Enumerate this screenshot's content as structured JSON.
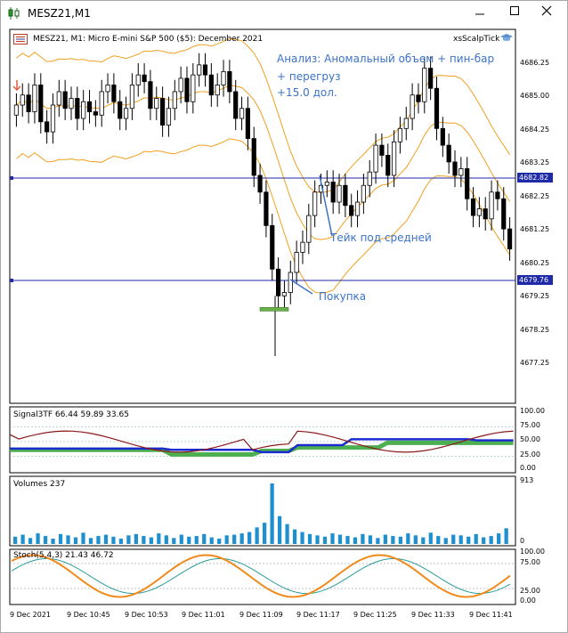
{
  "window": {
    "title": "MESZ21,M1",
    "controls": [
      "minimize",
      "maximize",
      "close"
    ]
  },
  "chart": {
    "info": "MESZ21, M1:  Micro E-mini S&P 500 ($5): December 2021",
    "ea_name": "xsScalpTick",
    "analysis_lines": [
      "Анализ: Аномальный объем + пин-бар",
      "+ перегруз",
      "+15.0 дол."
    ],
    "take_label": "Тейк под средней",
    "buy_label": "Покупка",
    "price_ticks": [
      "4686.25",
      "4685.00",
      "4684.25",
      "4683.25",
      "4682.25",
      "4681.25",
      "4680.25",
      "4679.25",
      "4678.25",
      "4677.25"
    ],
    "hline_upper": "4682.82",
    "hline_lower": "4679.76",
    "colors": {
      "hline": "#1f2aa8",
      "bands": "#f0a020",
      "annotation": "#3b73c9",
      "buy_marker": "#6ab04c"
    }
  },
  "signal_panel": {
    "label": "Signal3TF 66.44 59.89 33.65",
    "ticks": [
      "100.00",
      "75.00",
      "50.00",
      "25.00",
      "0.00"
    ]
  },
  "volume_panel": {
    "label": "Volumes 237",
    "max_tick": "913",
    "zero_tick": "0"
  },
  "stoch_panel": {
    "label": "Stoch(5,4,3) 21.43 46.72",
    "ticks": [
      "100.00",
      "75.00",
      "25.00",
      "0.00"
    ]
  },
  "time_axis": [
    "9 Dec 2021",
    "9 Dec 10:45",
    "9 Dec 10:53",
    "9 Dec 11:01",
    "9 Dec 11:09",
    "9 Dec 11:17",
    "9 Dec 11:25",
    "9 Dec 11:33",
    "9 Dec 11:41"
  ]
}
